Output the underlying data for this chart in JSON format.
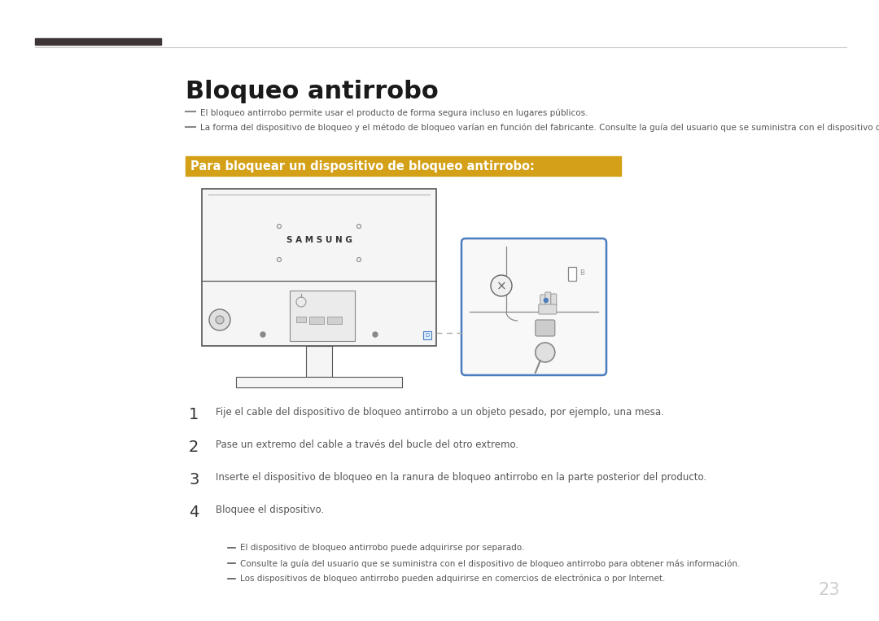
{
  "bg_color": "#ffffff",
  "page_number": "23",
  "title": "Bloqueo antirrobo",
  "header_bar_color": "#3d3535",
  "header_line_color": "#cccccc",
  "subtitle_bg": "#d4a017",
  "subtitle_text": "Para bloquear un dispositivo de bloqueo antirrobo:",
  "subtitle_text_color": "#ffffff",
  "bullet_color": "#555555",
  "bullet1": "El bloqueo antirrobo permite usar el producto de forma segura incluso en lugares públicos.",
  "bullet2": "La forma del dispositivo de bloqueo y el método de bloqueo varían en función del fabricante. Consulte la guía del usuario que se suministra con el dispositivo de bloqueo antirrobo para obtener más información.",
  "steps": [
    {
      "num": "1",
      "text": "Fije el cable del dispositivo de bloqueo antirrobo a un objeto pesado, por ejemplo, una mesa."
    },
    {
      "num": "2",
      "text": "Pase un extremo del cable a través del bucle del otro extremo."
    },
    {
      "num": "3",
      "text": "Inserte el dispositivo de bloqueo en la ranura de bloqueo antirrobo en la parte posterior del producto."
    },
    {
      "num": "4",
      "text": "Bloquee el dispositivo."
    }
  ],
  "sub_bullets": [
    "El dispositivo de bloqueo antirrobo puede adquirirse por separado.",
    "Consulte la guía del usuario que se suministra con el dispositivo de bloqueo antirrobo para obtener más información.",
    "Los dispositivos de bloqueo antirrobo pueden adquirirse en comercios de electrónica o por Internet."
  ],
  "monitor_outline_color": "#555555",
  "monitor_fill": "#f5f5f5",
  "detail_box_border": "#4a7cbf",
  "dashed_line_color": "#aaaaaa",
  "samsung_text_color": "#333333"
}
